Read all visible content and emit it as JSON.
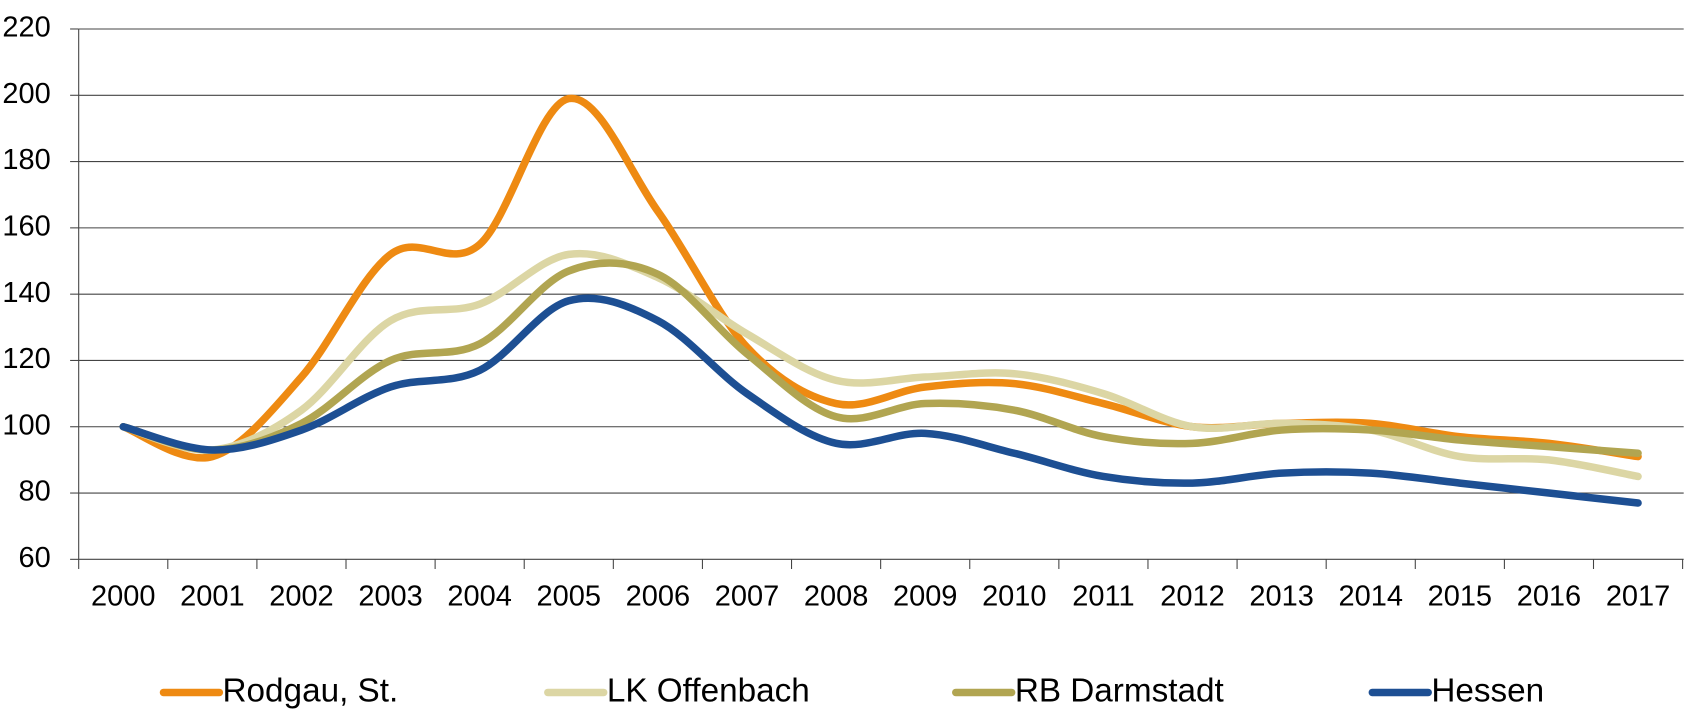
{
  "chart_data": {
    "type": "line",
    "categories": [
      "2000",
      "2001",
      "2002",
      "2003",
      "2004",
      "2005",
      "2006",
      "2007",
      "2008",
      "2009",
      "2010",
      "2011",
      "2012",
      "2013",
      "2014",
      "2015",
      "2016",
      "2017"
    ],
    "series": [
      {
        "name": "Rodgau, St.",
        "color": "#ee8a12",
        "values": [
          100,
          91,
          115,
          152,
          155,
          199,
          165,
          124,
          107,
          112,
          113,
          107,
          100,
          101,
          101,
          97,
          95,
          91
        ]
      },
      {
        "name": "LK Offenbach",
        "color": "#dcd6a4",
        "values": [
          100,
          93,
          105,
          132,
          137,
          152,
          145,
          128,
          114,
          115,
          116,
          110,
          100,
          101,
          99,
          91,
          90,
          85
        ]
      },
      {
        "name": "RB Darmstadt",
        "color": "#b1a551",
        "values": [
          100,
          93,
          101,
          120,
          125,
          147,
          146,
          122,
          103,
          107,
          105,
          97,
          95,
          99,
          99,
          96,
          94,
          92
        ]
      },
      {
        "name": "Hessen",
        "color": "#1d4f93",
        "values": [
          100,
          93,
          99,
          112,
          117,
          138,
          132,
          110,
          95,
          98,
          92,
          85,
          83,
          86,
          86,
          83,
          80,
          77
        ]
      }
    ],
    "ylim": [
      60,
      220
    ],
    "yticks": [
      60,
      80,
      100,
      120,
      140,
      160,
      180,
      200,
      220
    ],
    "grid": true
  }
}
